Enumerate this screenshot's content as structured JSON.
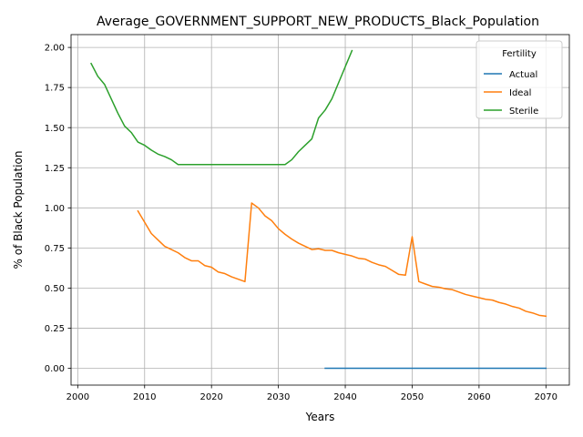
{
  "chart_data": {
    "type": "line",
    "title": "Average_GOVERNMENT_SUPPORT_NEW_PRODUCTS_Black_Population",
    "xlabel": "Years",
    "ylabel": "% of Black Population",
    "xlim": [
      1999,
      2073.5
    ],
    "ylim": [
      -0.105,
      2.08
    ],
    "xticks": [
      2000,
      2010,
      2020,
      2030,
      2040,
      2050,
      2060,
      2070
    ],
    "yticks": [
      0.0,
      0.25,
      0.5,
      0.75,
      1.0,
      1.25,
      1.5,
      1.75,
      2.0
    ],
    "ytick_labels": [
      "0.00",
      "0.25",
      "0.50",
      "0.75",
      "1.00",
      "1.25",
      "1.50",
      "1.75",
      "2.00"
    ],
    "grid": true,
    "legend": {
      "title": "Fertility",
      "position": "top-right"
    },
    "series": [
      {
        "name": "Actual",
        "color": "#1f77b4",
        "x": [
          2037,
          2070
        ],
        "y": [
          0.0,
          0.0
        ]
      },
      {
        "name": "Ideal",
        "color": "#ff7f0e",
        "x": [
          2009,
          2010,
          2011,
          2012,
          2013,
          2014,
          2015,
          2016,
          2017,
          2018,
          2019,
          2020,
          2021,
          2022,
          2023,
          2024,
          2025,
          2026,
          2027,
          2028,
          2029,
          2030,
          2031,
          2032,
          2033,
          2034,
          2035,
          2036,
          2037,
          2038,
          2039,
          2040,
          2041,
          2042,
          2043,
          2044,
          2045,
          2046,
          2047,
          2048,
          2049,
          2050,
          2051,
          2052,
          2053,
          2054,
          2055,
          2056,
          2057,
          2058,
          2059,
          2060,
          2061,
          2062,
          2063,
          2064,
          2065,
          2066,
          2067,
          2068,
          2069,
          2070
        ],
        "y": [
          0.98,
          0.91,
          0.84,
          0.8,
          0.76,
          0.74,
          0.72,
          0.69,
          0.67,
          0.67,
          0.64,
          0.63,
          0.6,
          0.59,
          0.57,
          0.555,
          0.54,
          1.03,
          1.0,
          0.95,
          0.92,
          0.87,
          0.835,
          0.805,
          0.78,
          0.76,
          0.74,
          0.745,
          0.735,
          0.735,
          0.72,
          0.71,
          0.7,
          0.685,
          0.68,
          0.66,
          0.645,
          0.635,
          0.61,
          0.585,
          0.58,
          0.82,
          0.54,
          0.525,
          0.51,
          0.505,
          0.495,
          0.49,
          0.475,
          0.46,
          0.45,
          0.44,
          0.43,
          0.425,
          0.41,
          0.4,
          0.385,
          0.375,
          0.355,
          0.345,
          0.33,
          0.325
        ]
      },
      {
        "name": "Sterile",
        "color": "#2ca02c",
        "x": [
          2002,
          2003,
          2004,
          2005,
          2006,
          2007,
          2008,
          2009,
          2010,
          2011,
          2012,
          2013,
          2014,
          2015,
          2016,
          2017,
          2018,
          2019,
          2020,
          2021,
          2022,
          2023,
          2024,
          2025,
          2026,
          2027,
          2028,
          2029,
          2030,
          2031,
          2032,
          2033,
          2034,
          2035,
          2036,
          2037,
          2038,
          2039,
          2040,
          2041
        ],
        "y": [
          1.9,
          1.82,
          1.77,
          1.68,
          1.59,
          1.51,
          1.47,
          1.41,
          1.39,
          1.36,
          1.335,
          1.32,
          1.3,
          1.27,
          1.27,
          1.27,
          1.27,
          1.27,
          1.27,
          1.27,
          1.27,
          1.27,
          1.27,
          1.27,
          1.27,
          1.27,
          1.27,
          1.27,
          1.27,
          1.27,
          1.3,
          1.35,
          1.39,
          1.43,
          1.56,
          1.61,
          1.68,
          1.78,
          1.88,
          1.98
        ]
      }
    ]
  }
}
